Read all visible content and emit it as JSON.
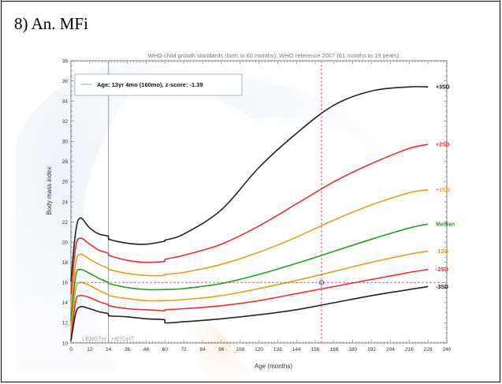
{
  "document": {
    "caption": "8) An. MFi"
  },
  "chart_data": {
    "type": "line",
    "title": "WHO child growth standards (birth to 60 months), WHO reference 2007 (61 months to 19 years)",
    "xlabel": "Age (months)",
    "ylabel": "Body mass index",
    "xlim": [
      0,
      240
    ],
    "ylim": [
      10,
      38
    ],
    "x_ticks": [
      0,
      12,
      24,
      36,
      48,
      60,
      72,
      84,
      96,
      108,
      120,
      132,
      144,
      156,
      168,
      180,
      192,
      204,
      216,
      228,
      240
    ],
    "y_ticks": [
      10,
      12,
      14,
      16,
      18,
      20,
      22,
      24,
      26,
      28,
      30,
      32,
      34,
      36,
      38
    ],
    "grid": false,
    "region_labels": [
      "LENGTH",
      "HEIGHT"
    ],
    "region_divider_x": 24,
    "legend": {
      "placement": "top-left",
      "text": "Age: 13yr 4mo (160mo), z-score: -1.39",
      "line_color": "#b8b8c8"
    },
    "marker": {
      "x": 160,
      "y": 16.0
    },
    "x_categories_months": [
      0,
      3,
      6,
      12,
      18,
      23.9,
      24,
      36,
      48,
      59.9,
      60,
      72,
      96,
      120,
      144,
      168,
      192,
      216,
      228
    ],
    "series": [
      {
        "name": "+3SD",
        "color": "#222222",
        "values": [
          16.1,
          21.0,
          22.4,
          21.4,
          20.8,
          20.6,
          20.3,
          19.9,
          19.8,
          20.1,
          20.2,
          20.8,
          23.2,
          27.4,
          30.8,
          33.6,
          35.0,
          35.4,
          35.4
        ]
      },
      {
        "name": "+2SD",
        "color": "#e83030",
        "values": [
          14.8,
          19.5,
          20.4,
          19.8,
          19.2,
          18.9,
          18.7,
          18.2,
          18.0,
          18.1,
          18.3,
          18.7,
          19.8,
          21.6,
          23.8,
          26.0,
          27.8,
          29.3,
          29.7
        ]
      },
      {
        "name": "+1SD",
        "color": "#e0a020",
        "values": [
          13.4,
          17.9,
          18.8,
          18.3,
          17.8,
          17.4,
          17.3,
          16.9,
          16.7,
          16.7,
          16.8,
          17.0,
          17.8,
          19.0,
          20.5,
          22.2,
          23.7,
          24.9,
          25.2
        ]
      },
      {
        "name": "Median",
        "color": "#20a020",
        "values": [
          12.2,
          16.6,
          17.3,
          16.9,
          16.4,
          16.0,
          15.9,
          15.5,
          15.3,
          15.3,
          15.3,
          15.4,
          15.9,
          16.8,
          17.9,
          19.1,
          20.3,
          21.4,
          21.8
        ]
      },
      {
        "name": "-1SD",
        "color": "#e0a020",
        "values": [
          11.1,
          15.3,
          16.0,
          15.7,
          15.2,
          14.8,
          14.7,
          14.4,
          14.2,
          14.2,
          14.2,
          14.3,
          14.7,
          15.4,
          16.2,
          17.1,
          18.0,
          18.8,
          19.1
        ]
      },
      {
        "name": "-2SD",
        "color": "#e83030",
        "values": [
          10.2,
          14.1,
          14.7,
          14.5,
          14.1,
          13.8,
          13.7,
          13.4,
          13.3,
          13.2,
          13.3,
          13.4,
          13.7,
          14.2,
          14.9,
          15.6,
          16.3,
          17.0,
          17.3
        ]
      },
      {
        "name": "-3SD",
        "color": "#222222",
        "values": [
          10.2,
          12.9,
          13.6,
          13.4,
          13.1,
          12.9,
          12.7,
          12.6,
          12.4,
          12.3,
          12.0,
          12.1,
          12.4,
          12.8,
          13.3,
          14.0,
          14.7,
          15.3,
          15.6
        ]
      }
    ]
  }
}
